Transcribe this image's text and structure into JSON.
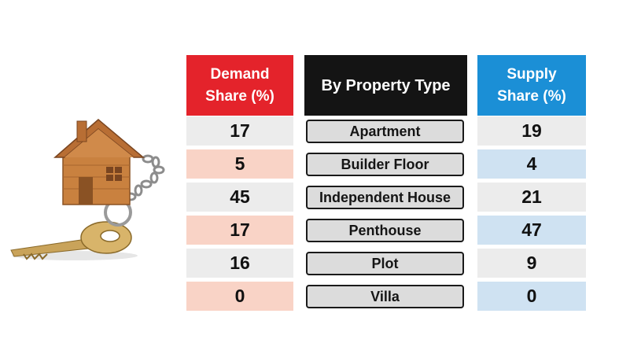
{
  "chart_data": {
    "type": "table",
    "columns": [
      "Demand\nShare (%)",
      "By Property Type",
      "Supply\nShare (%)"
    ],
    "rows": [
      {
        "property_type": "Apartment",
        "demand": 17,
        "supply": 19
      },
      {
        "property_type": "Builder Floor",
        "demand": 5,
        "supply": 4
      },
      {
        "property_type": "Independent House",
        "demand": 45,
        "supply": 21
      },
      {
        "property_type": "Penthouse",
        "demand": 17,
        "supply": 47
      },
      {
        "property_type": "Plot",
        "demand": 16,
        "supply": 9
      },
      {
        "property_type": "Villa",
        "demand": 0,
        "supply": 0
      }
    ]
  },
  "colors": {
    "demand_header": "#e4232b",
    "type_header": "#141414",
    "supply_header": "#1b8fd6",
    "demand_alt_row": "#f9d3c6",
    "supply_alt_row": "#cfe2f2",
    "neutral_row": "#ececec"
  },
  "illustration": {
    "icon": "house-keychain-icon"
  }
}
